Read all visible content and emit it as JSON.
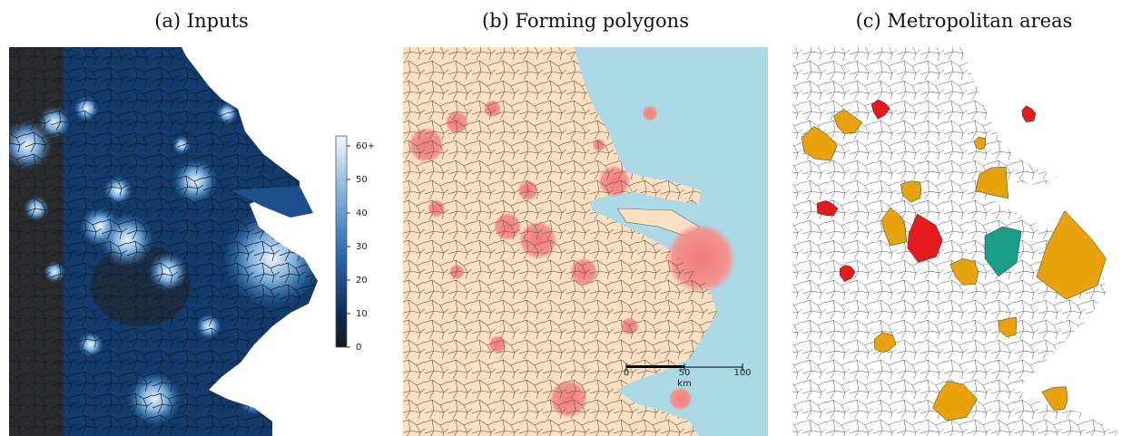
{
  "panels": [
    {
      "title": "(a) Inputs"
    },
    {
      "title": "(b) Forming polygons"
    },
    {
      "title": "(c) Metropolitan areas"
    }
  ],
  "colorbar": {
    "range": [
      0,
      60
    ],
    "ticks": [
      0,
      10,
      20,
      30,
      40,
      50,
      {
        "value": 60,
        "label": "60+"
      }
    ]
  },
  "scale_bar": {
    "range": [
      0,
      100
    ],
    "ticks": [
      0,
      50,
      100
    ],
    "unit": "km"
  }
}
